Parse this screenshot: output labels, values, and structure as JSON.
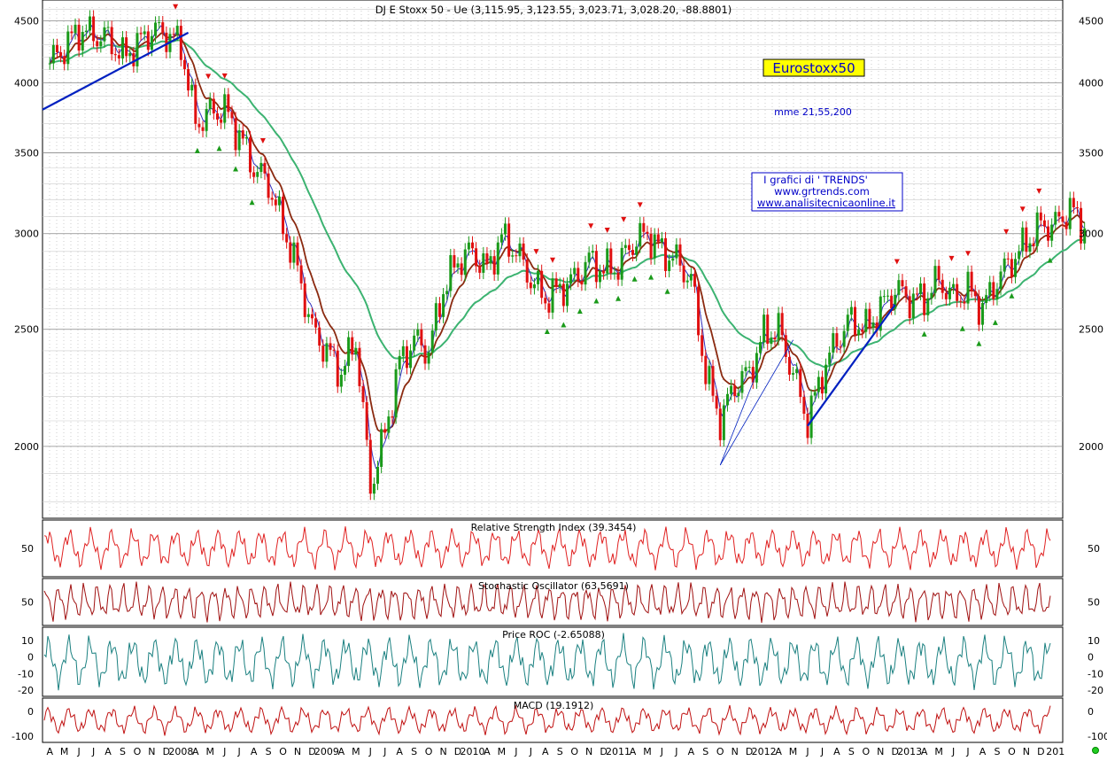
{
  "chart_data": {
    "type": "candlestick",
    "title": "DJ E Stoxx 50 - Ue (3,115.95, 3,123.55, 3,023.71, 3,028.20, -88.8801)",
    "watermark": "Eurostoxx50",
    "ma_note": "mme 21,55,200",
    "credits": [
      "I grafici di ' TRENDS'",
      "www.grtrends.com",
      "www.analisitecnicaonline.it"
    ],
    "y_scale": "log",
    "ylim": [
      1750,
      4620
    ],
    "y_ticks": [
      "4500",
      "4000",
      "3500",
      "3000",
      "2500",
      "2000"
    ],
    "x_labels": [
      "A",
      "M",
      "J",
      "J",
      "A",
      "S",
      "O",
      "N",
      "D",
      "2008",
      "A",
      "M",
      "J",
      "J",
      "A",
      "S",
      "O",
      "N",
      "D",
      "2009",
      "A",
      "M",
      "J",
      "J",
      "A",
      "S",
      "O",
      "N",
      "D",
      "2010",
      "A",
      "M",
      "J",
      "J",
      "A",
      "S",
      "O",
      "N",
      "D",
      "2011",
      "A",
      "M",
      "J",
      "J",
      "A",
      "S",
      "O",
      "N",
      "D",
      "2012",
      "A",
      "M",
      "J",
      "J",
      "A",
      "S",
      "O",
      "N",
      "D",
      "2013",
      "A",
      "M",
      "J",
      "J",
      "A",
      "S",
      "O",
      "N",
      "D",
      "201"
    ],
    "close_series": [
      {
        "month": 0,
        "v": 4150
      },
      {
        "month": 2,
        "v": 4420
      },
      {
        "month": 4,
        "v": 4350
      },
      {
        "month": 5,
        "v": 4200
      },
      {
        "month": 6,
        "v": 4300
      },
      {
        "month": 7,
        "v": 4420
      },
      {
        "month": 8,
        "v": 4390
      },
      {
        "month": 9,
        "v": 4300
      },
      {
        "month": 10,
        "v": 3700
      },
      {
        "month": 11,
        "v": 3780
      },
      {
        "month": 12,
        "v": 3800
      },
      {
        "month": 13,
        "v": 3620
      },
      {
        "month": 14,
        "v": 3400
      },
      {
        "month": 15,
        "v": 3300
      },
      {
        "month": 17,
        "v": 2800
      },
      {
        "month": 18,
        "v": 2500
      },
      {
        "month": 19,
        "v": 2400
      },
      {
        "month": 20,
        "v": 2300
      },
      {
        "month": 21,
        "v": 2450
      },
      {
        "month": 22,
        "v": 1850
      },
      {
        "month": 23,
        "v": 2050
      },
      {
        "month": 24,
        "v": 2350
      },
      {
        "month": 25,
        "v": 2450
      },
      {
        "month": 26,
        "v": 2400
      },
      {
        "month": 27,
        "v": 2700
      },
      {
        "month": 28,
        "v": 2850
      },
      {
        "month": 29,
        "v": 2900
      },
      {
        "month": 30,
        "v": 2800
      },
      {
        "month": 31,
        "v": 2980
      },
      {
        "month": 32,
        "v": 2900
      },
      {
        "month": 33,
        "v": 2750
      },
      {
        "month": 34,
        "v": 2650
      },
      {
        "month": 35,
        "v": 2700
      },
      {
        "month": 36,
        "v": 2750
      },
      {
        "month": 37,
        "v": 2850
      },
      {
        "month": 38,
        "v": 2800
      },
      {
        "month": 39,
        "v": 2820
      },
      {
        "month": 40,
        "v": 2950
      },
      {
        "month": 41,
        "v": 3000
      },
      {
        "month": 42,
        "v": 2900
      },
      {
        "month": 43,
        "v": 2850
      },
      {
        "month": 44,
        "v": 2750
      },
      {
        "month": 45,
        "v": 2300
      },
      {
        "month": 46,
        "v": 2100
      },
      {
        "month": 47,
        "v": 2250
      },
      {
        "month": 48,
        "v": 2300
      },
      {
        "month": 49,
        "v": 2480
      },
      {
        "month": 50,
        "v": 2500
      },
      {
        "month": 51,
        "v": 2300
      },
      {
        "month": 52,
        "v": 2100
      },
      {
        "month": 53,
        "v": 2300
      },
      {
        "month": 54,
        "v": 2450
      },
      {
        "month": 55,
        "v": 2550
      },
      {
        "month": 56,
        "v": 2500
      },
      {
        "month": 57,
        "v": 2600
      },
      {
        "month": 58,
        "v": 2700
      },
      {
        "month": 59,
        "v": 2650
      },
      {
        "month": 60,
        "v": 2650
      },
      {
        "month": 61,
        "v": 2750
      },
      {
        "month": 62,
        "v": 2650
      },
      {
        "month": 63,
        "v": 2700
      },
      {
        "month": 64,
        "v": 2600
      },
      {
        "month": 65,
        "v": 2750
      },
      {
        "month": 66,
        "v": 2850
      },
      {
        "month": 67,
        "v": 2950
      },
      {
        "month": 68,
        "v": 3050
      },
      {
        "month": 69,
        "v": 3050
      },
      {
        "month": 70,
        "v": 3150
      },
      {
        "month": 71,
        "v": 3030
      }
    ],
    "indicators": [
      {
        "name": "Relative Strength Index",
        "label": "Relative Strength Index (39.3454)",
        "ticks": [
          "50"
        ]
      },
      {
        "name": "Stochastic Oscillator",
        "label": "Stochastic Oscillator (63.5691)",
        "ticks": [
          "50"
        ]
      },
      {
        "name": "Price ROC",
        "label": "Price ROC (-2.65088)",
        "ticks": [
          "10",
          "0",
          "-10",
          "-20"
        ]
      },
      {
        "name": "MACD",
        "label": "MACD (19.1912)",
        "ticks": [
          "0",
          "-100"
        ]
      }
    ],
    "colors": {
      "up": "#1a9a1a",
      "down": "#e01010",
      "ma21": "#3030c0",
      "ma55": "#8b2a10",
      "ma200": "#3cb371",
      "trend": "#0020c0",
      "rsi": "#e02020",
      "stoch": "#a01010",
      "roc": "#1a8080",
      "macd": "#c01010",
      "grid": "#999999"
    }
  }
}
